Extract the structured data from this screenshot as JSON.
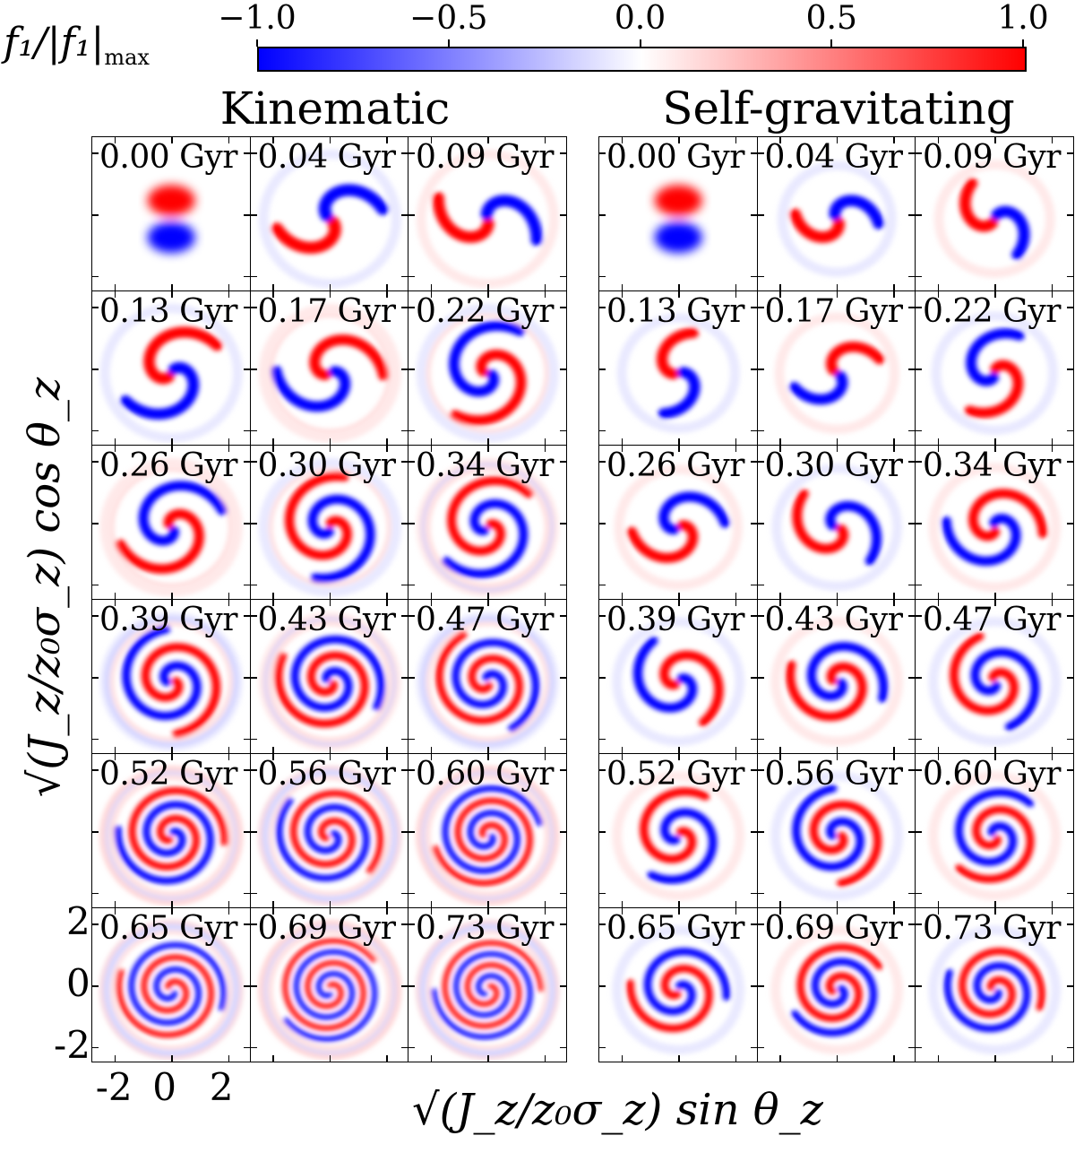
{
  "colorbar": {
    "label": "f₁/|f₁|",
    "label_sub": "max",
    "ticks": [
      "−1.0",
      "−0.5",
      "0.0",
      "0.5",
      "1.0"
    ],
    "tick_values": [
      -1.0,
      -0.5,
      0.0,
      0.5,
      1.0
    ],
    "colors": {
      "low": "#0000ff",
      "mid": "#ffffff",
      "high": "#ff0000"
    }
  },
  "groups": [
    {
      "title": "Kinematic"
    },
    {
      "title": "Self-gravitating"
    }
  ],
  "axes": {
    "xlabel": "√(J_z/z₀σ_z) sin θ_z",
    "ylabel": "√(J_z/z₀σ_z) cos θ_z",
    "xticks": [
      "-2",
      "0",
      "2"
    ],
    "yticks": [
      "2",
      "0",
      "-2"
    ],
    "range": [
      -2.5,
      2.5
    ]
  },
  "chart_data": {
    "type": "heatmap",
    "quantity": "f1 / |f1|max",
    "vmin": -1.0,
    "vmax": 1.0,
    "xrange": [
      -2.5,
      2.5
    ],
    "yrange": [
      -2.5,
      2.5
    ],
    "times_gyr": [
      "0.00 Gyr",
      "0.04 Gyr",
      "0.09 Gyr",
      "0.13 Gyr",
      "0.17 Gyr",
      "0.22 Gyr",
      "0.26 Gyr",
      "0.30 Gyr",
      "0.34 Gyr",
      "0.39 Gyr",
      "0.43 Gyr",
      "0.47 Gyr",
      "0.52 Gyr",
      "0.56 Gyr",
      "0.60 Gyr",
      "0.65 Gyr",
      "0.69 Gyr",
      "0.73 Gyr"
    ],
    "groups": [
      "Kinematic",
      "Self-gravitating"
    ],
    "grid_rows": 6,
    "grid_cols_per_group": 3
  }
}
